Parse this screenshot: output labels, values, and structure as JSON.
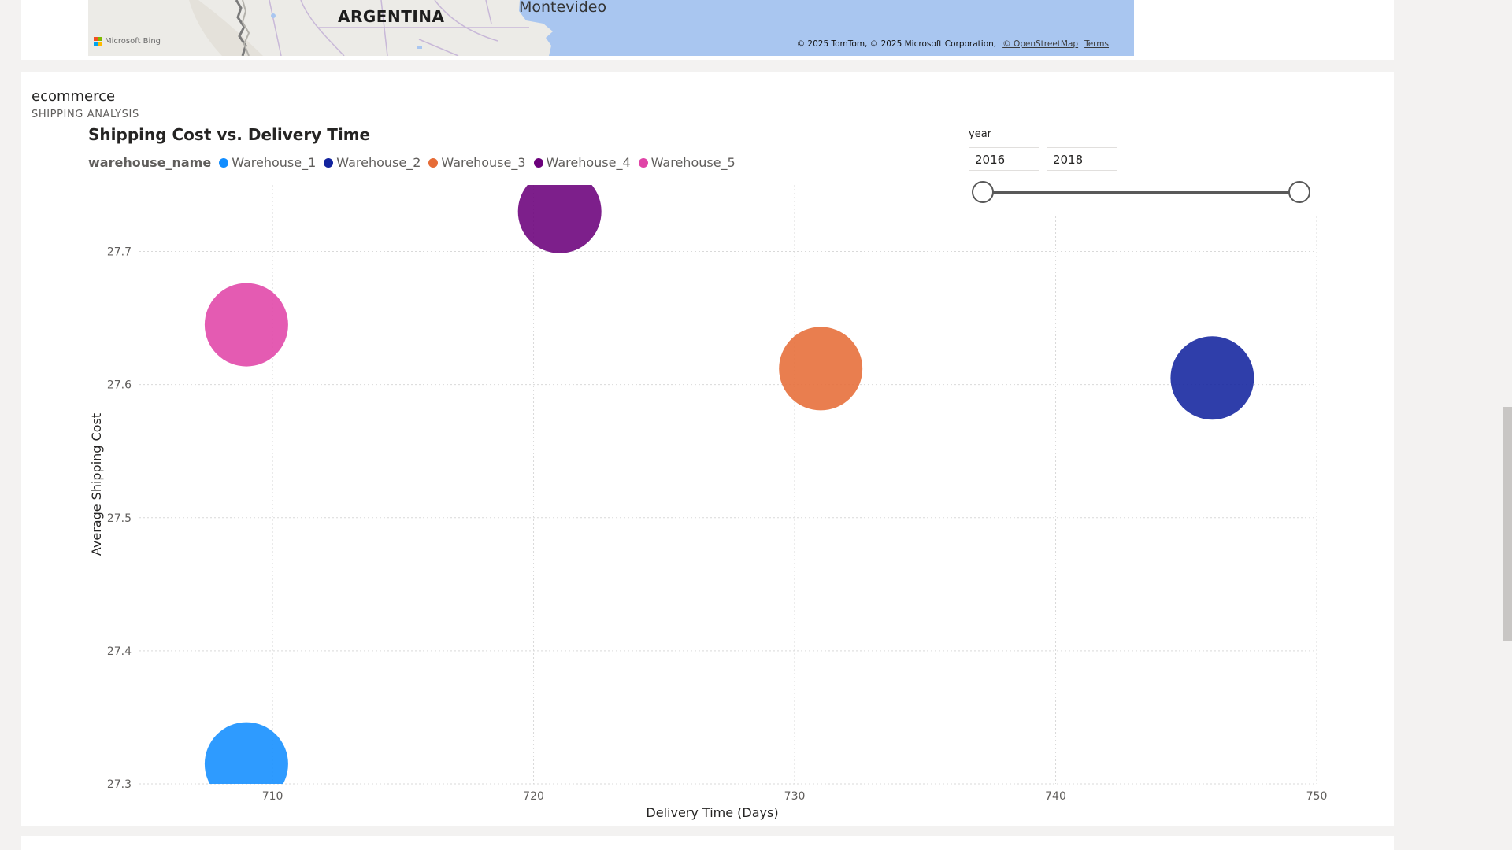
{
  "map": {
    "country_label": "ARGENTINA",
    "city_label": "Montevideo",
    "provider": "Microsoft Bing",
    "copyright": "© 2025 TomTom, © 2025 Microsoft Corporation,",
    "osm_link": "© OpenStreetMap",
    "terms_link": "Terms"
  },
  "page": {
    "name": "ecommerce",
    "subtitle": "SHIPPING ANALYSIS"
  },
  "slicer": {
    "title": "year",
    "start": "2016",
    "end": "2018",
    "range": [
      2016,
      2018
    ]
  },
  "chart_data": {
    "type": "scatter",
    "title": "Shipping Cost vs. Delivery Time",
    "xlabel": "Delivery Time (Days)",
    "ylabel": "Average Shipping Cost",
    "legend_title": "warehouse_name",
    "legend_position": "top-left",
    "grid": true,
    "xlim": [
      704.9,
      750
    ],
    "ylim": [
      27.3,
      27.75
    ],
    "xticks": [
      710,
      720,
      730,
      740,
      750
    ],
    "yticks": [
      27.3,
      27.4,
      27.5,
      27.6,
      27.7
    ],
    "series": [
      {
        "name": "Warehouse_1",
        "color": "#118dff",
        "x": 709,
        "y": 27.315
      },
      {
        "name": "Warehouse_2",
        "color": "#12239e",
        "x": 746,
        "y": 27.605
      },
      {
        "name": "Warehouse_3",
        "color": "#e66c37",
        "x": 731,
        "y": 27.612
      },
      {
        "name": "Warehouse_4",
        "color": "#6b007b",
        "x": 721,
        "y": 27.73
      },
      {
        "name": "Warehouse_5",
        "color": "#e044a7",
        "x": 709,
        "y": 27.645
      }
    ]
  }
}
